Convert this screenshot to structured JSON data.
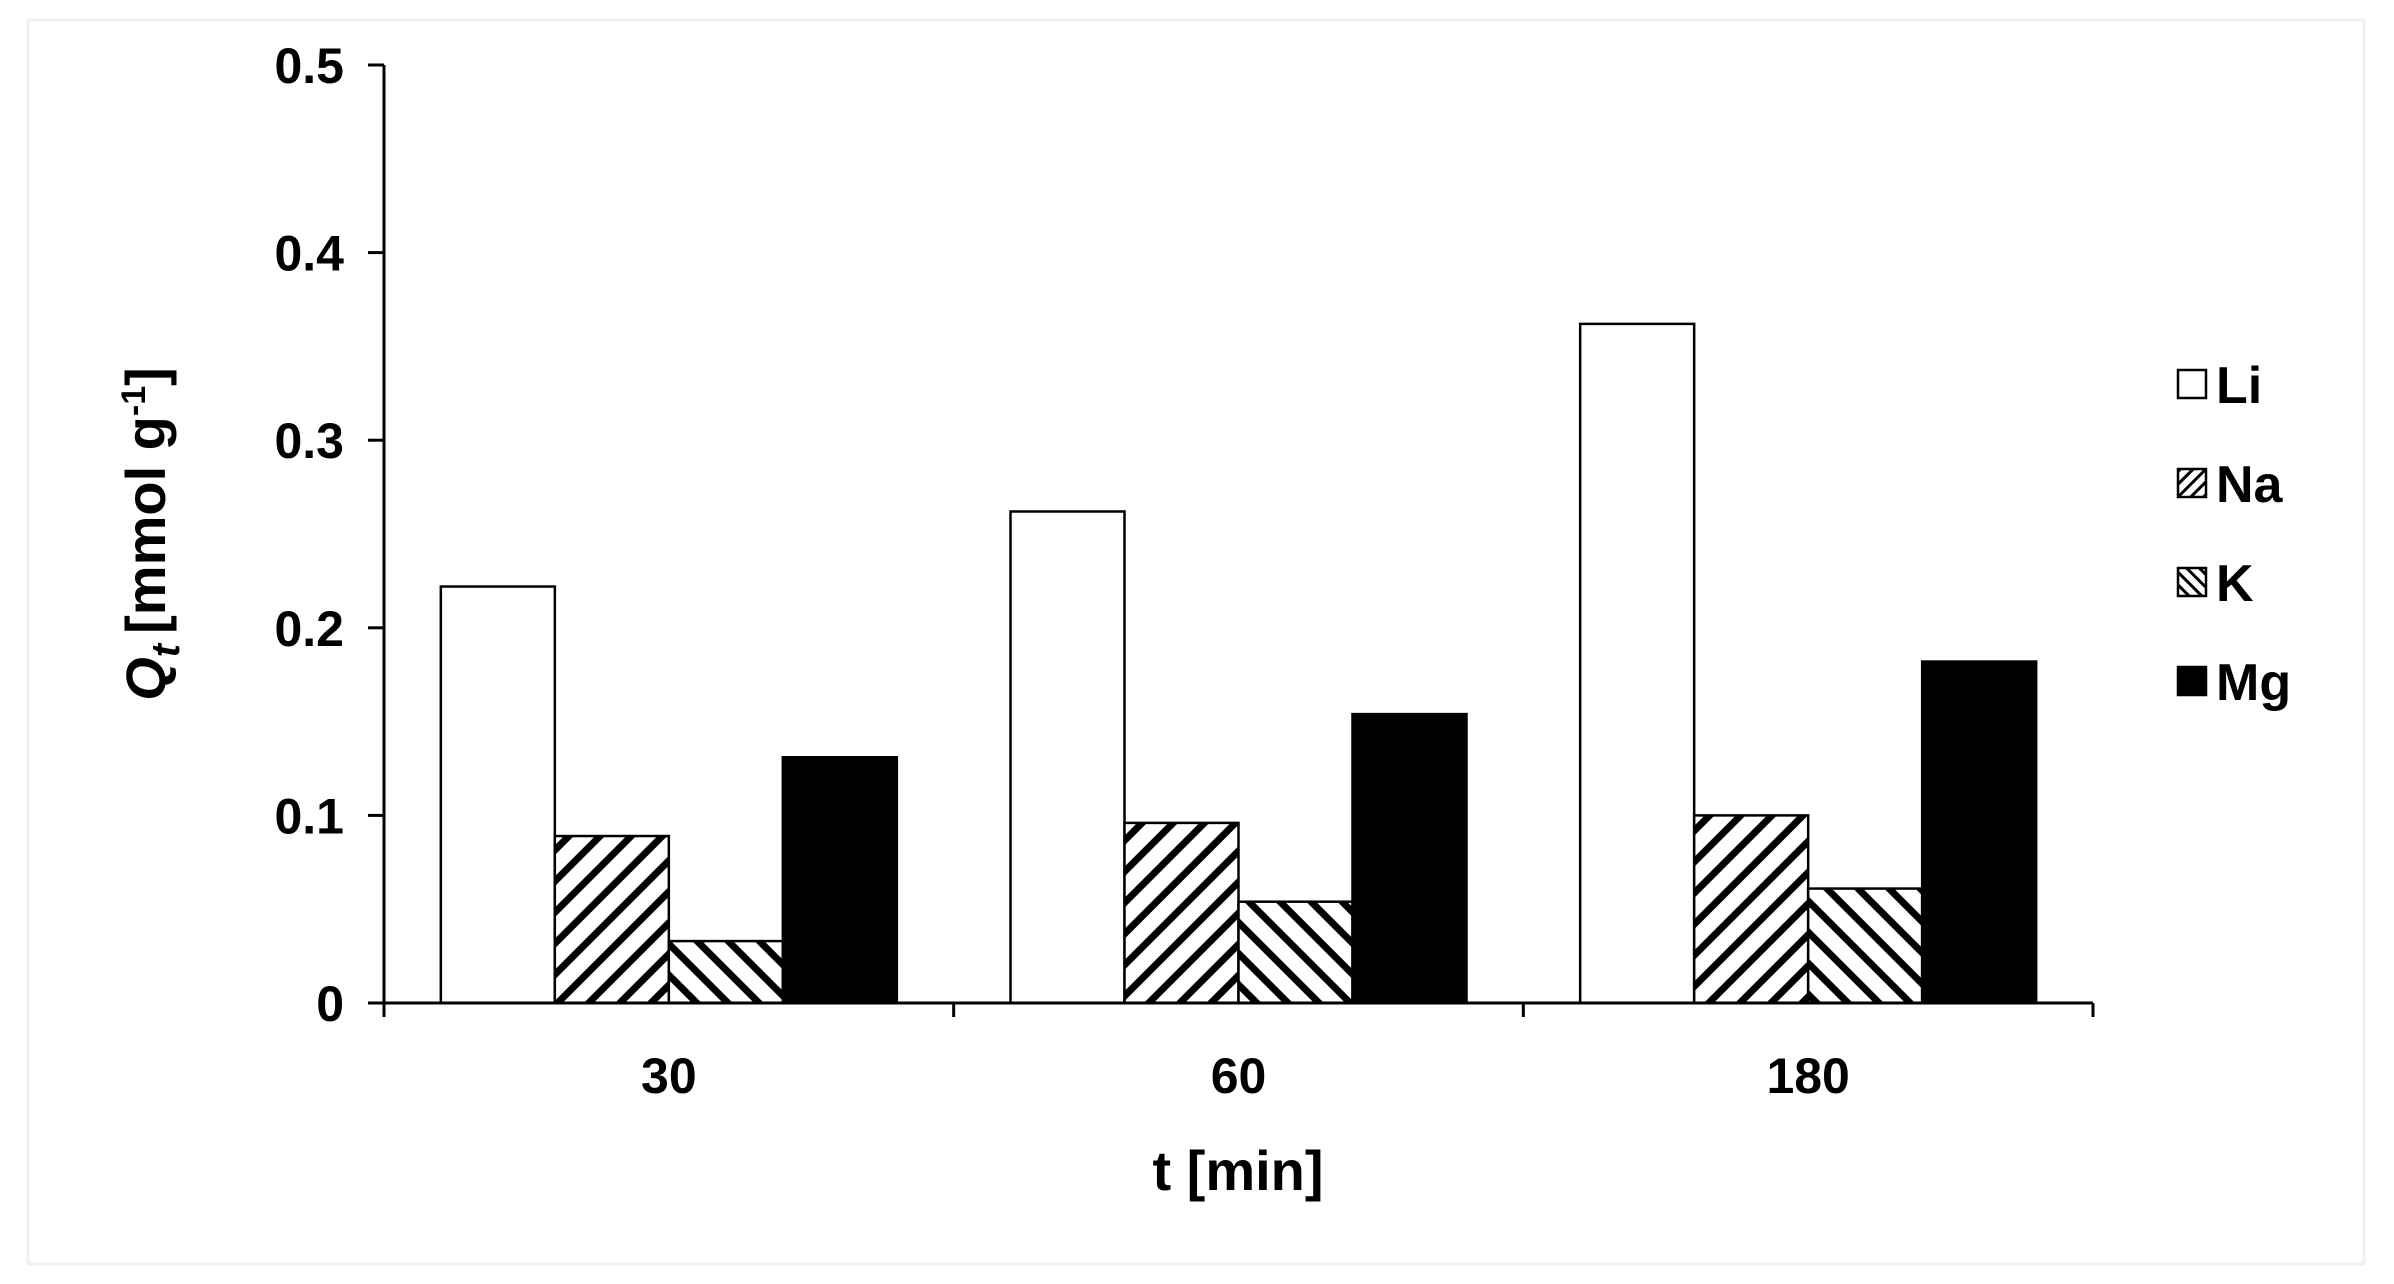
{
  "chart_data": {
    "type": "bar",
    "categories": [
      "30",
      "60",
      "180"
    ],
    "series": [
      {
        "name": "Li",
        "values": [
          0.222,
          0.262,
          0.362
        ],
        "pattern": "empty",
        "color": "#ffffff"
      },
      {
        "name": "Na",
        "values": [
          0.089,
          0.096,
          0.1
        ],
        "pattern": "hatch-back",
        "color": "#000000"
      },
      {
        "name": "K",
        "values": [
          0.033,
          0.054,
          0.061
        ],
        "pattern": "hatch-forward",
        "color": "#000000"
      },
      {
        "name": "Mg",
        "values": [
          0.131,
          0.154,
          0.182
        ],
        "pattern": "solid",
        "color": "#000000"
      }
    ],
    "y_ticks": [
      "0",
      "0.1",
      "0.2",
      "0.3",
      "0.4",
      "0.5"
    ],
    "ylim": [
      0,
      0.5
    ],
    "xlabel": "t [min]",
    "ylabel_symbol": "Q",
    "ylabel_subscript": "t",
    "ylabel_unit": "[mmol g",
    "ylabel_unit_sup": "-1",
    "ylabel_unit_close": "]",
    "legend_position": "right",
    "grid": false
  }
}
